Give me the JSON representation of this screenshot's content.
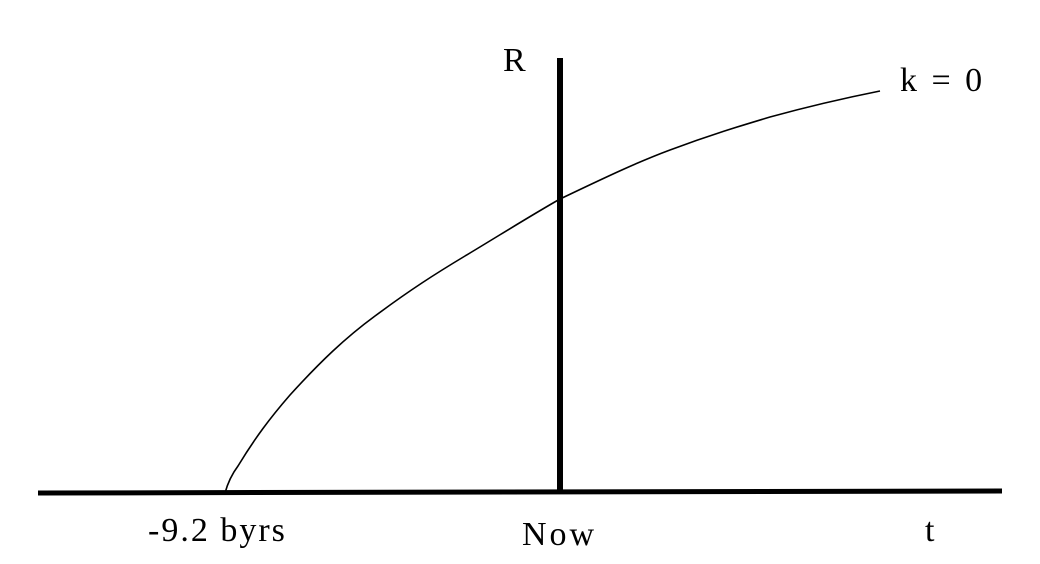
{
  "diagram": {
    "y_axis_label": "R",
    "x_axis_label": "t",
    "curve_label": "k = 0",
    "x_ticks": [
      "-9.2 byrs",
      "Now"
    ],
    "line_color": "#000000"
  }
}
